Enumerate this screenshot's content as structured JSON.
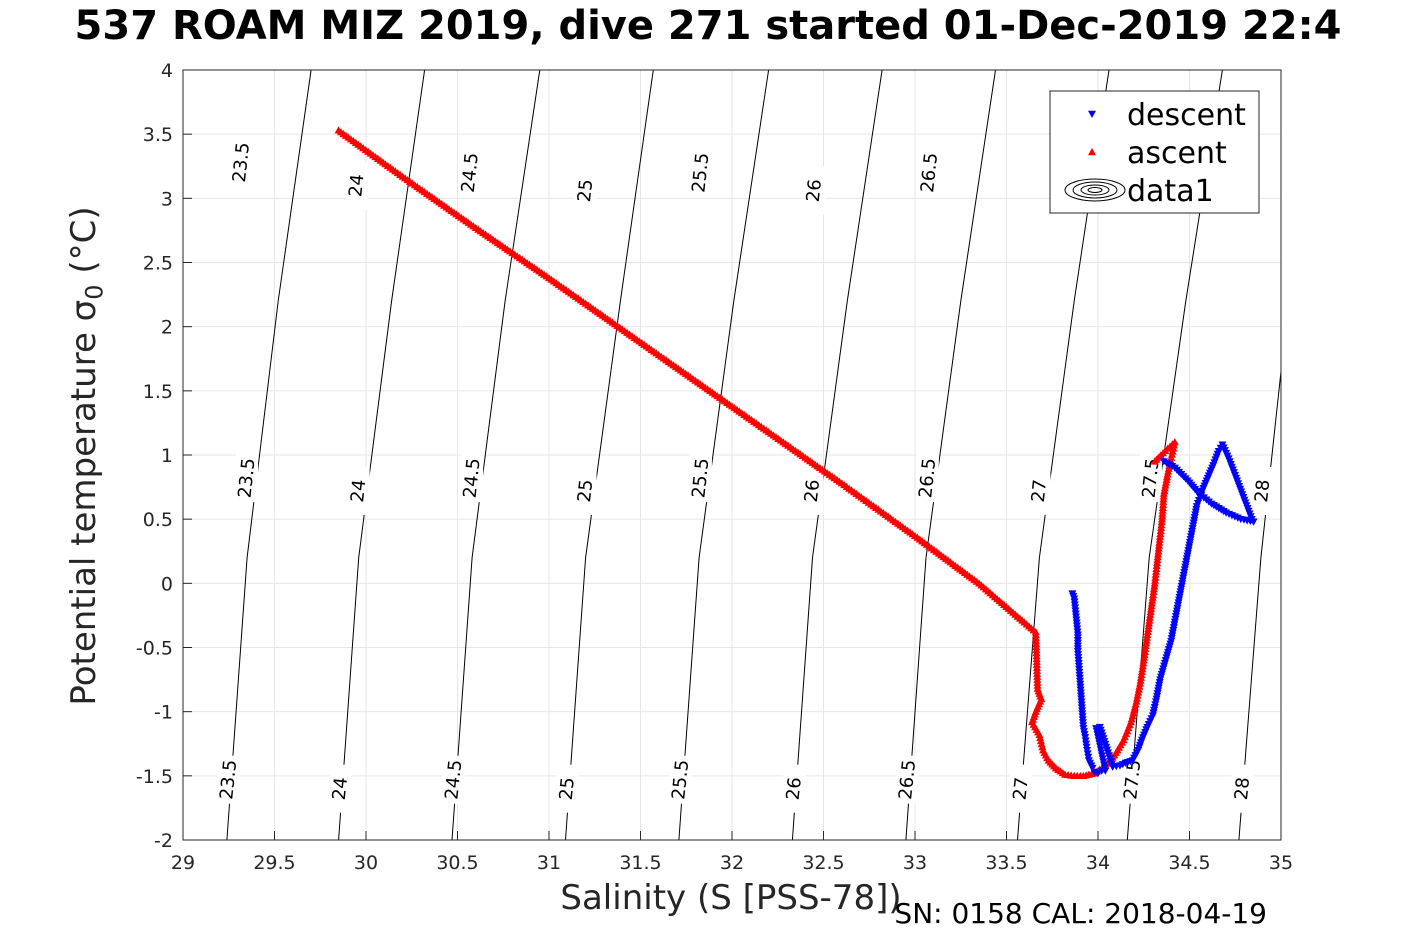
{
  "title": "537 ROAM MIZ 2019, dive 271 started 01-Dec-2019 22:4",
  "footer": "SN: 0158  CAL: 2018-04-19",
  "chart_data": {
    "type": "scatter",
    "title": "537 ROAM MIZ 2019, dive 271 started 01-Dec-2019 22:4",
    "xlabel": "Salinity (S [PSS-78])",
    "ylabel_main": "Potential temperature ",
    "ylabel_sym": "σ",
    "ylabel_sub": "0",
    "ylabel_unit": " (°C)",
    "xlim": [
      29,
      35
    ],
    "ylim": [
      -2,
      4
    ],
    "xticks": [
      "29",
      "29.5",
      "30",
      "30.5",
      "31",
      "31.5",
      "32",
      "32.5",
      "33",
      "33.5",
      "34",
      "34.5",
      "35"
    ],
    "yticks": [
      "-2",
      "-1.5",
      "-1",
      "-0.5",
      "0",
      "0.5",
      "1",
      "1.5",
      "2",
      "2.5",
      "3",
      "3.5",
      "4"
    ],
    "grid": true,
    "legend_position": "top-right",
    "legend": [
      {
        "label": "descent",
        "marker": "triangle-down",
        "color": "#0000ff"
      },
      {
        "label": "ascent",
        "marker": "triangle-up",
        "color": "#ff0000"
      },
      {
        "label": "data1",
        "marker": "contour",
        "color": "#000000"
      }
    ],
    "series": [
      {
        "name": "descent",
        "color": "#0000ff",
        "marker": "triangle-down",
        "points": [
          [
            33.86,
            -0.08
          ],
          [
            33.87,
            -0.12
          ],
          [
            33.88,
            -0.26
          ],
          [
            33.89,
            -0.4
          ],
          [
            33.89,
            -0.53
          ],
          [
            33.92,
            -1.13
          ],
          [
            33.93,
            -1.2
          ],
          [
            33.94,
            -1.3
          ],
          [
            33.95,
            -1.38
          ],
          [
            33.97,
            -1.44
          ],
          [
            33.98,
            -1.47
          ],
          [
            34.0,
            -1.48
          ],
          [
            34.02,
            -1.46
          ],
          [
            34.04,
            -1.46
          ],
          [
            33.99,
            -1.13
          ],
          [
            34.01,
            -1.12
          ],
          [
            34.08,
            -1.43
          ],
          [
            34.12,
            -1.42
          ],
          [
            34.15,
            -1.4
          ],
          [
            34.19,
            -1.38
          ],
          [
            34.22,
            -1.3
          ],
          [
            34.24,
            -1.22
          ],
          [
            34.27,
            -1.12
          ],
          [
            34.3,
            -1.03
          ],
          [
            34.32,
            -0.9
          ],
          [
            34.34,
            -0.75
          ],
          [
            34.37,
            -0.6
          ],
          [
            34.4,
            -0.45
          ],
          [
            34.42,
            -0.3
          ],
          [
            34.44,
            -0.15
          ],
          [
            34.46,
            0.0
          ],
          [
            34.48,
            0.15
          ],
          [
            34.5,
            0.3
          ],
          [
            34.52,
            0.45
          ],
          [
            34.54,
            0.6
          ],
          [
            34.57,
            0.72
          ],
          [
            34.6,
            0.82
          ],
          [
            34.63,
            0.92
          ],
          [
            34.66,
            1.03
          ],
          [
            34.68,
            1.08
          ],
          [
            34.72,
            0.95
          ],
          [
            34.76,
            0.8
          ],
          [
            34.8,
            0.65
          ],
          [
            34.84,
            0.5
          ],
          [
            34.85,
            0.48
          ],
          [
            34.78,
            0.5
          ],
          [
            34.7,
            0.55
          ],
          [
            34.62,
            0.62
          ],
          [
            34.55,
            0.7
          ],
          [
            34.49,
            0.8
          ],
          [
            34.42,
            0.9
          ],
          [
            34.36,
            0.95
          ]
        ]
      },
      {
        "name": "ascent",
        "color": "#ff0000",
        "marker": "triangle-up",
        "points": [
          [
            29.85,
            3.53
          ],
          [
            30.2,
            3.17
          ],
          [
            30.6,
            2.77
          ],
          [
            31.0,
            2.38
          ],
          [
            31.4,
            1.98
          ],
          [
            31.8,
            1.58
          ],
          [
            32.2,
            1.18
          ],
          [
            32.6,
            0.78
          ],
          [
            33.0,
            0.37
          ],
          [
            33.35,
            0.0
          ],
          [
            33.66,
            -0.38
          ],
          [
            33.67,
            -0.82
          ],
          [
            33.69,
            -0.9
          ],
          [
            33.66,
            -1.0
          ],
          [
            33.64,
            -1.08
          ],
          [
            33.68,
            -1.18
          ],
          [
            33.7,
            -1.3
          ],
          [
            33.73,
            -1.38
          ],
          [
            33.77,
            -1.44
          ],
          [
            33.82,
            -1.49
          ],
          [
            33.87,
            -1.5
          ],
          [
            33.92,
            -1.5
          ],
          [
            33.98,
            -1.48
          ],
          [
            34.04,
            -1.42
          ],
          [
            34.09,
            -1.34
          ],
          [
            34.14,
            -1.22
          ],
          [
            34.18,
            -1.08
          ],
          [
            34.21,
            -0.92
          ],
          [
            34.23,
            -0.78
          ],
          [
            34.25,
            -0.6
          ],
          [
            34.27,
            -0.4
          ],
          [
            34.29,
            -0.2
          ],
          [
            34.31,
            0.0
          ],
          [
            34.33,
            0.25
          ],
          [
            34.35,
            0.5
          ],
          [
            34.36,
            0.7
          ],
          [
            34.38,
            0.85
          ],
          [
            34.4,
            0.98
          ],
          [
            34.42,
            1.1
          ],
          [
            34.38,
            1.05
          ],
          [
            34.33,
            0.98
          ],
          [
            34.31,
            0.95
          ]
        ]
      }
    ],
    "contour_labels": [
      "23.5",
      "24",
      "24.5",
      "25",
      "25.5",
      "26",
      "26.5",
      "27",
      "27.5",
      "28"
    ],
    "contours": [
      {
        "label": "23.5",
        "points": [
          [
            29.24,
            -2.0
          ],
          [
            29.35,
            0.2
          ],
          [
            29.52,
            2.2
          ],
          [
            29.7,
            4.0
          ]
        ]
      },
      {
        "label": "24",
        "points": [
          [
            29.85,
            -2.0
          ],
          [
            29.96,
            0.2
          ],
          [
            30.14,
            2.2
          ],
          [
            30.32,
            4.0
          ]
        ]
      },
      {
        "label": "24.5",
        "points": [
          [
            30.47,
            -2.0
          ],
          [
            30.58,
            0.2
          ],
          [
            30.76,
            2.2
          ],
          [
            30.95,
            4.0
          ]
        ]
      },
      {
        "label": "25",
        "points": [
          [
            31.09,
            -2.0
          ],
          [
            31.2,
            0.2
          ],
          [
            31.39,
            2.2
          ],
          [
            31.57,
            4.0
          ]
        ]
      },
      {
        "label": "25.5",
        "points": [
          [
            31.71,
            -2.0
          ],
          [
            31.82,
            0.2
          ],
          [
            32.01,
            2.2
          ],
          [
            32.2,
            4.0
          ]
        ]
      },
      {
        "label": "26",
        "points": [
          [
            32.33,
            -2.0
          ],
          [
            32.44,
            0.2
          ],
          [
            32.63,
            2.2
          ],
          [
            32.82,
            4.0
          ]
        ]
      },
      {
        "label": "26.5",
        "points": [
          [
            32.95,
            -2.0
          ],
          [
            33.06,
            0.2
          ],
          [
            33.25,
            2.2
          ],
          [
            33.44,
            4.0
          ]
        ]
      },
      {
        "label": "27",
        "points": [
          [
            33.56,
            -2.0
          ],
          [
            33.68,
            0.2
          ],
          [
            33.87,
            2.2
          ],
          [
            34.06,
            4.0
          ]
        ]
      },
      {
        "label": "27.5",
        "points": [
          [
            34.16,
            -2.0
          ],
          [
            34.28,
            0.2
          ],
          [
            34.48,
            2.2
          ],
          [
            34.68,
            4.0
          ]
        ]
      },
      {
        "label": "28",
        "points": [
          [
            34.77,
            -2.0
          ],
          [
            34.89,
            0.2
          ],
          [
            35.0,
            1.65
          ]
        ]
      }
    ],
    "contour_label_positions": [
      {
        "label": "23.5",
        "points": [
          [
            29.32,
            3.28
          ],
          [
            29.35,
            0.82
          ],
          [
            29.25,
            -1.53
          ]
        ]
      },
      {
        "label": "24",
        "points": [
          [
            29.95,
            3.1
          ],
          [
            29.96,
            0.72
          ],
          [
            29.86,
            -1.6
          ]
        ]
      },
      {
        "label": "24.5",
        "points": [
          [
            30.57,
            3.2
          ],
          [
            30.58,
            0.82
          ],
          [
            30.48,
            -1.53
          ]
        ]
      },
      {
        "label": "25",
        "points": [
          [
            31.2,
            3.06
          ],
          [
            31.2,
            0.72
          ],
          [
            31.1,
            -1.6
          ]
        ]
      },
      {
        "label": "25.5",
        "points": [
          [
            31.83,
            3.2
          ],
          [
            31.83,
            0.82
          ],
          [
            31.72,
            -1.53
          ]
        ]
      },
      {
        "label": "26",
        "points": [
          [
            32.45,
            3.06
          ],
          [
            32.44,
            0.72
          ],
          [
            32.34,
            -1.6
          ]
        ]
      },
      {
        "label": "26.5",
        "points": [
          [
            33.08,
            3.2
          ],
          [
            33.07,
            0.82
          ],
          [
            32.96,
            -1.53
          ]
        ]
      },
      {
        "label": "27",
        "points": [
          [
            33.68,
            0.72
          ],
          [
            33.58,
            -1.6
          ]
        ]
      },
      {
        "label": "27.5",
        "points": [
          [
            34.29,
            0.82
          ],
          [
            34.19,
            -1.53
          ]
        ]
      },
      {
        "label": "28",
        "points": [
          [
            34.9,
            0.72
          ],
          [
            34.79,
            -1.6
          ]
        ]
      }
    ]
  }
}
